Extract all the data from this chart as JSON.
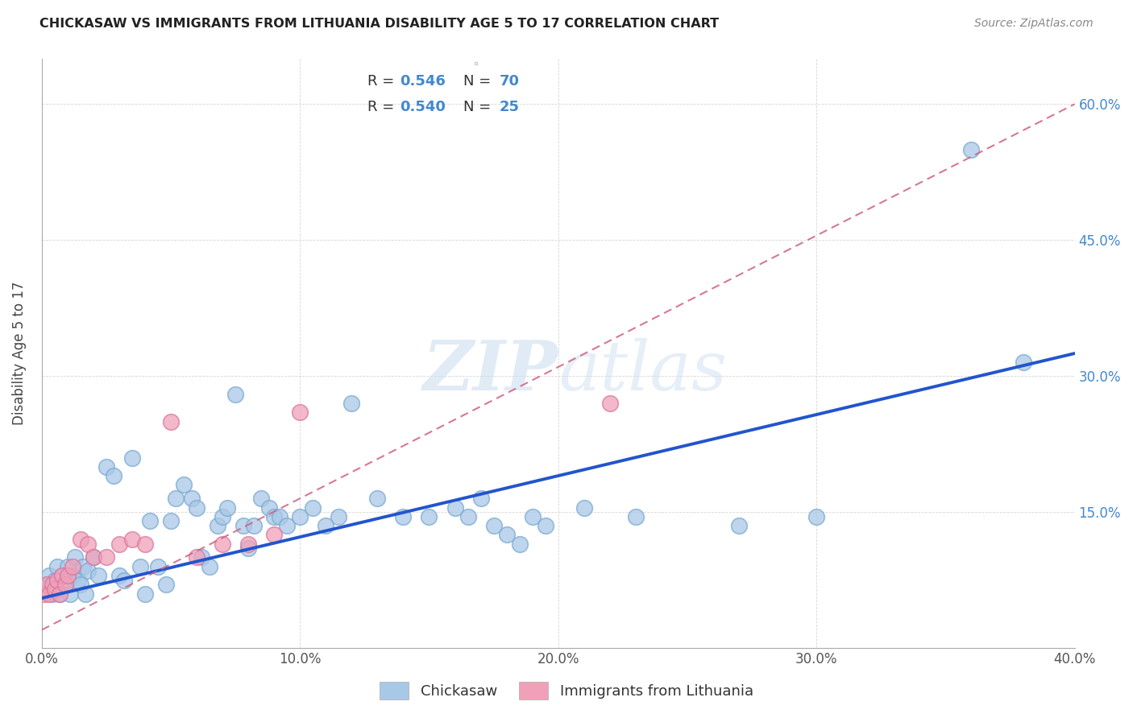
{
  "title": "CHICKASAW VS IMMIGRANTS FROM LITHUANIA DISABILITY AGE 5 TO 17 CORRELATION CHART",
  "source": "Source: ZipAtlas.com",
  "ylabel": "Disability Age 5 to 17",
  "xlim": [
    0.0,
    0.4
  ],
  "ylim": [
    0.0,
    0.65
  ],
  "xticks": [
    0.0,
    0.1,
    0.2,
    0.3,
    0.4
  ],
  "yticks": [
    0.0,
    0.15,
    0.3,
    0.45,
    0.6
  ],
  "xticklabels": [
    "0.0%",
    "10.0%",
    "20.0%",
    "30.0%",
    "40.0%"
  ],
  "yticklabels_left": [
    "",
    "",
    "",
    "",
    ""
  ],
  "yticklabels_right": [
    "",
    "15.0%",
    "30.0%",
    "45.0%",
    "60.0%"
  ],
  "legend_labels": [
    "Chickasaw",
    "Immigrants from Lithuania"
  ],
  "chickasaw_color": "#a8c8e8",
  "lithuania_color": "#f0a0b8",
  "chickasaw_line_color": "#2255cc",
  "lithuania_line_color": "#d06080",
  "R_chickasaw": 0.546,
  "N_chickasaw": 70,
  "R_lithuania": 0.54,
  "N_lithuania": 25,
  "watermark": "ZIPatlas",
  "chickasaw_x": [
    0.002,
    0.003,
    0.004,
    0.005,
    0.006,
    0.007,
    0.008,
    0.009,
    0.01,
    0.011,
    0.012,
    0.013,
    0.014,
    0.015,
    0.016,
    0.017,
    0.018,
    0.02,
    0.022,
    0.025,
    0.028,
    0.03,
    0.032,
    0.035,
    0.038,
    0.04,
    0.042,
    0.045,
    0.048,
    0.05,
    0.052,
    0.055,
    0.058,
    0.06,
    0.062,
    0.065,
    0.068,
    0.07,
    0.072,
    0.075,
    0.078,
    0.08,
    0.082,
    0.085,
    0.088,
    0.09,
    0.092,
    0.095,
    0.1,
    0.105,
    0.11,
    0.115,
    0.12,
    0.13,
    0.14,
    0.15,
    0.16,
    0.165,
    0.17,
    0.175,
    0.18,
    0.185,
    0.19,
    0.195,
    0.21,
    0.23,
    0.27,
    0.3,
    0.36,
    0.38
  ],
  "chickasaw_y": [
    0.07,
    0.08,
    0.06,
    0.075,
    0.09,
    0.06,
    0.08,
    0.07,
    0.09,
    0.06,
    0.08,
    0.1,
    0.075,
    0.07,
    0.09,
    0.06,
    0.085,
    0.1,
    0.08,
    0.2,
    0.19,
    0.08,
    0.075,
    0.21,
    0.09,
    0.06,
    0.14,
    0.09,
    0.07,
    0.14,
    0.165,
    0.18,
    0.165,
    0.155,
    0.1,
    0.09,
    0.135,
    0.145,
    0.155,
    0.28,
    0.135,
    0.11,
    0.135,
    0.165,
    0.155,
    0.145,
    0.145,
    0.135,
    0.145,
    0.155,
    0.135,
    0.145,
    0.27,
    0.165,
    0.145,
    0.145,
    0.155,
    0.145,
    0.165,
    0.135,
    0.125,
    0.115,
    0.145,
    0.135,
    0.155,
    0.145,
    0.135,
    0.145,
    0.55,
    0.315
  ],
  "lithuania_x": [
    0.001,
    0.002,
    0.003,
    0.004,
    0.005,
    0.006,
    0.007,
    0.008,
    0.009,
    0.01,
    0.012,
    0.015,
    0.018,
    0.02,
    0.025,
    0.03,
    0.035,
    0.04,
    0.05,
    0.06,
    0.07,
    0.08,
    0.09,
    0.1,
    0.22
  ],
  "lithuania_y": [
    0.06,
    0.07,
    0.06,
    0.07,
    0.065,
    0.075,
    0.06,
    0.08,
    0.07,
    0.08,
    0.09,
    0.12,
    0.115,
    0.1,
    0.1,
    0.115,
    0.12,
    0.115,
    0.25,
    0.1,
    0.115,
    0.115,
    0.125,
    0.26,
    0.27
  ],
  "ck_line_x0": 0.0,
  "ck_line_y0": 0.055,
  "ck_line_x1": 0.4,
  "ck_line_y1": 0.325,
  "lt_line_x0": 0.0,
  "lt_line_y0": 0.02,
  "lt_line_x1": 0.4,
  "lt_line_y1": 0.6
}
